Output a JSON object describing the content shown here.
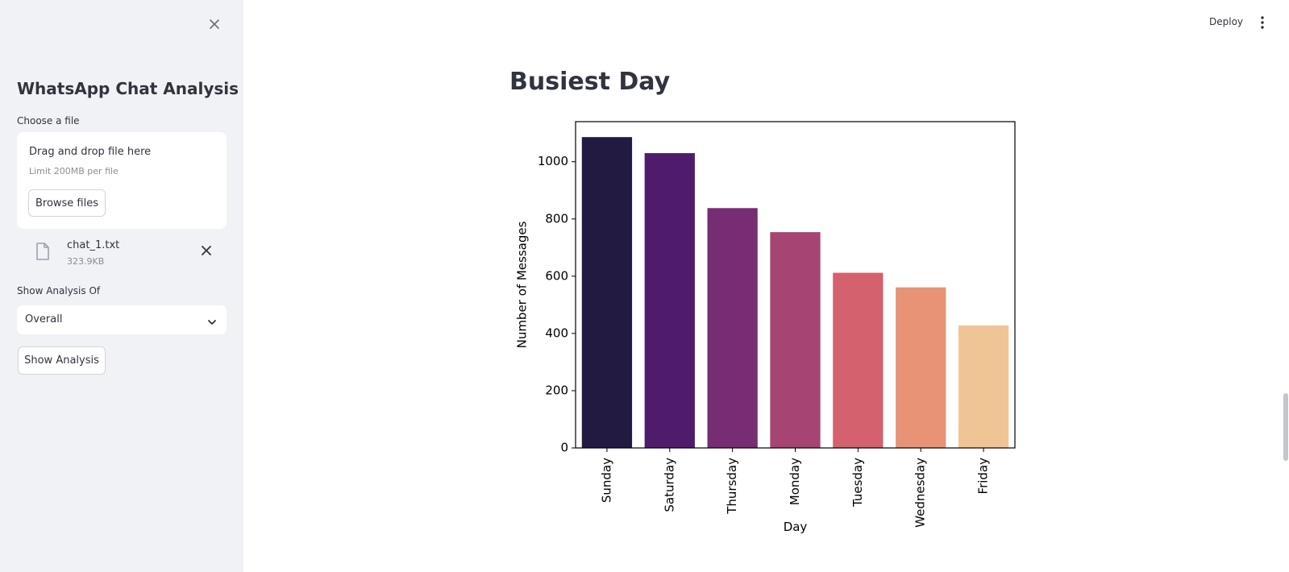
{
  "sidebar": {
    "title": "WhatsApp Chat Analysis",
    "close_icon": "close-icon",
    "uploader": {
      "label": "Choose a file",
      "drop_text": "Drag and drop file here",
      "limit_text": "Limit 200MB per file",
      "browse_label": "Browse files"
    },
    "file": {
      "icon": "file-icon",
      "name": "chat_1.txt",
      "size": "323.9KB"
    },
    "analysis_select": {
      "label": "Show Analysis Of",
      "value": "Overall"
    },
    "show_button_label": "Show Analysis"
  },
  "header": {
    "deploy_label": "Deploy",
    "menu_icon": "kebab-menu-icon"
  },
  "main": {
    "title": "Busiest Day"
  },
  "chart_data": {
    "type": "bar",
    "categories": [
      "Sunday",
      "Saturday",
      "Thursday",
      "Monday",
      "Tuesday",
      "Wednesday",
      "Friday"
    ],
    "values": [
      1086,
      1030,
      838,
      754,
      612,
      561,
      428
    ],
    "colors": [
      "#221a40",
      "#4f1c6b",
      "#762d73",
      "#a64574",
      "#d4616e",
      "#e89376",
      "#f0c595"
    ],
    "xlabel": "Day",
    "ylabel": "Number of Messages",
    "ylim": [
      0,
      1140
    ],
    "yticks": [
      0,
      200,
      400,
      600,
      800,
      1000
    ],
    "grid": false
  }
}
